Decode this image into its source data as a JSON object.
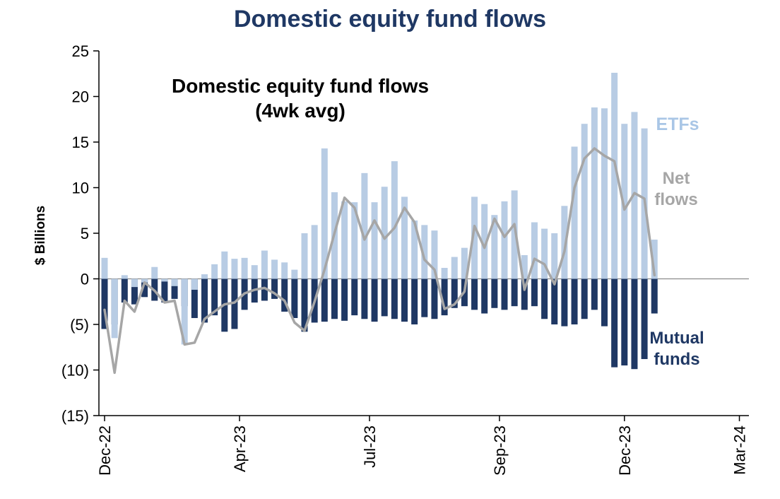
{
  "title": "Domestic equity fund flows",
  "annotation": {
    "line1": "Domestic equity fund flows",
    "line2": "(4wk avg)"
  },
  "labels": {
    "etf": "ETFs",
    "net_line1": "Net",
    "net_line2": "flows",
    "mutual_line1": "Mutual",
    "mutual_line2": "funds",
    "y_axis": "$ Billions"
  },
  "colors": {
    "title": "#1F3864",
    "etf": "#A9C6E6",
    "etf_bar": "#B8CCE4",
    "mutual": "#1F3864",
    "net": "#A6A6A6",
    "axis": "#000000",
    "zero_line": "#8C8C8C"
  },
  "chart_data": {
    "type": "bar",
    "title": "Domestic equity fund flows",
    "subtitle": "(4wk avg)",
    "xlabel": "",
    "ylabel": "$ Billions",
    "ylim": [
      -15,
      25
    ],
    "grid": false,
    "legend_position": "in-chart text annotations",
    "x_unit": "weeks starting Dec-22, weekly bars",
    "y_ticks": [
      {
        "v": 25,
        "label": "25"
      },
      {
        "v": 20,
        "label": "20"
      },
      {
        "v": 15,
        "label": "15"
      },
      {
        "v": 10,
        "label": "10"
      },
      {
        "v": 5,
        "label": "5"
      },
      {
        "v": 0,
        "label": "0"
      },
      {
        "v": -5,
        "label": "(5)"
      },
      {
        "v": -10,
        "label": "(10)"
      },
      {
        "v": -15,
        "label": "(15)"
      }
    ],
    "x_ticks": [
      {
        "w": 0,
        "label": "Dec-22"
      },
      {
        "w": 13.5,
        "label": "Apr-23"
      },
      {
        "w": 26.5,
        "label": "Jul-23"
      },
      {
        "w": 39.5,
        "label": "Sep-23"
      },
      {
        "w": 52,
        "label": "Dec-23"
      },
      {
        "w": 63.5,
        "label": "Mar-24"
      }
    ],
    "total_weeks": 65,
    "series": [
      {
        "name": "Mutual funds",
        "type": "bar",
        "color": "#1F3864",
        "values": [
          -5.5,
          -5.0,
          -2.6,
          -2.8,
          -2.0,
          -2.4,
          -2.6,
          -2.2,
          -3.0,
          -4.3,
          -4.8,
          -4.0,
          -5.8,
          -5.5,
          -3.4,
          -2.6,
          -2.4,
          -2.2,
          -3.6,
          -4.3,
          -5.8,
          -4.8,
          -4.7,
          -4.4,
          -4.6,
          -4.0,
          -4.4,
          -4.7,
          -4.1,
          -4.4,
          -4.7,
          -5.0,
          -4.2,
          -4.4,
          -4.0,
          -3.2,
          -3.0,
          -3.4,
          -3.8,
          -3.2,
          -3.4,
          -3.0,
          -3.4,
          -3.0,
          -4.4,
          -5.0,
          -5.2,
          -5.0,
          -4.4,
          -3.4,
          -5.2,
          -9.7,
          -9.5,
          -9.9,
          -8.8,
          -3.8
        ]
      },
      {
        "name": "ETFs",
        "type": "bar",
        "color": "#B8CCE4",
        "values": [
          2.3,
          -6.5,
          0.4,
          -0.9,
          -0.4,
          1.3,
          -0.3,
          -0.8,
          -7.2,
          -1.2,
          0.5,
          1.6,
          3.0,
          2.2,
          2.3,
          1.5,
          3.1,
          2.1,
          1.8,
          1.0,
          5.0,
          5.9,
          14.3,
          9.5,
          8.5,
          8.4,
          11.6,
          8.4,
          10.1,
          12.9,
          9.0,
          6.4,
          5.9,
          5.3,
          1.2,
          2.4,
          3.4,
          9.0,
          8.2,
          7.0,
          8.5,
          9.7,
          2.6,
          6.2,
          5.5,
          5.0,
          8.0,
          14.5,
          17.0,
          18.8,
          18.7,
          22.6,
          17.0,
          18.3,
          16.5,
          4.3
        ]
      },
      {
        "name": "Net flows",
        "type": "line",
        "color": "#A6A6A6",
        "values": [
          -3.4,
          -10.3,
          -2.4,
          -3.6,
          -0.4,
          -1.3,
          -2.6,
          -2.4,
          -7.2,
          -7.0,
          -4.4,
          -3.6,
          -2.8,
          -2.6,
          -1.6,
          -1.2,
          -1.0,
          -1.6,
          -2.4,
          -4.8,
          -5.7,
          -2.5,
          1.0,
          5.0,
          8.9,
          7.8,
          4.3,
          6.4,
          4.4,
          5.6,
          7.8,
          6.2,
          2.1,
          1.0,
          -3.3,
          -2.8,
          -1.4,
          5.8,
          3.4,
          6.6,
          4.6,
          6.0,
          -1.2,
          2.2,
          1.6,
          -0.6,
          3.0,
          10.0,
          13.2,
          14.3,
          13.5,
          12.9,
          7.6,
          9.4,
          8.8,
          0.4
        ]
      }
    ]
  }
}
